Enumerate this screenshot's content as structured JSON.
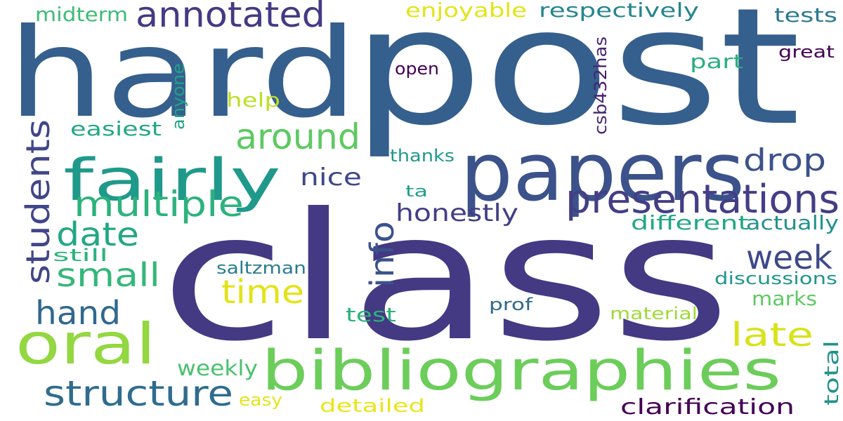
{
  "colors": {
    "background": "#ffffff",
    "palette": [
      "#440154",
      "#443983",
      "#31688e",
      "#21918c",
      "#35b779",
      "#90d743",
      "#fde725"
    ]
  },
  "words": [
    {
      "text": "class",
      "color": "#443983"
    },
    {
      "text": "post",
      "color": "#355f8d"
    },
    {
      "text": "hard",
      "color": "#355f8d"
    },
    {
      "text": "papers",
      "color": "#3b528b"
    },
    {
      "text": "bibliographies",
      "color": "#6ccd5a"
    },
    {
      "text": "fairly",
      "color": "#1f998a"
    },
    {
      "text": "oral",
      "color": "#93d741"
    },
    {
      "text": "presentations",
      "color": "#433e85"
    },
    {
      "text": "annotated",
      "color": "#443a83"
    },
    {
      "text": "multiple",
      "color": "#2db27d"
    },
    {
      "text": "structure",
      "color": "#2f6c8e"
    },
    {
      "text": "around",
      "color": "#5ec962"
    },
    {
      "text": "date",
      "color": "#22a884"
    },
    {
      "text": "info",
      "color": "#3b528b"
    },
    {
      "text": "week",
      "color": "#3e4989"
    },
    {
      "text": "small",
      "color": "#35b779"
    },
    {
      "text": "hand",
      "color": "#31688e"
    },
    {
      "text": "students",
      "color": "#404688"
    },
    {
      "text": "time",
      "color": "#e2e418"
    },
    {
      "text": "late",
      "color": "#d8e219"
    },
    {
      "text": "drop",
      "color": "#3b528b"
    },
    {
      "text": "honestly",
      "color": "#433e85"
    },
    {
      "text": "nice",
      "color": "#3e4989"
    },
    {
      "text": "weekly",
      "color": "#4ac16d"
    },
    {
      "text": "clarification",
      "color": "#440154"
    },
    {
      "text": "different",
      "color": "#22a884"
    },
    {
      "text": "actually",
      "color": "#21918c"
    },
    {
      "text": "respectively",
      "color": "#25858e"
    },
    {
      "text": "enjoyable",
      "color": "#e2e418"
    },
    {
      "text": "midterm",
      "color": "#3dbc74"
    },
    {
      "text": "tests",
      "color": "#2a788e"
    },
    {
      "text": "part",
      "color": "#29af7f"
    },
    {
      "text": "great",
      "color": "#440154"
    },
    {
      "text": "open",
      "color": "#440154"
    },
    {
      "text": "help",
      "color": "#bddf26"
    },
    {
      "text": "easiest",
      "color": "#22a884"
    },
    {
      "text": "anyone",
      "color": "#20a386"
    },
    {
      "text": "csb432has",
      "color": "#482374"
    },
    {
      "text": "thanks",
      "color": "#1f998a"
    },
    {
      "text": "ta",
      "color": "#1f9e89"
    },
    {
      "text": "still",
      "color": "#2db27d"
    },
    {
      "text": "saltzman",
      "color": "#287d8e"
    },
    {
      "text": "discussions",
      "color": "#1f968b"
    },
    {
      "text": "marks",
      "color": "#5ec962"
    },
    {
      "text": "test",
      "color": "#2db27d"
    },
    {
      "text": "prof",
      "color": "#31688e"
    },
    {
      "text": "material",
      "color": "#9fda3a"
    },
    {
      "text": "total",
      "color": "#21918c"
    },
    {
      "text": "easy",
      "color": "#e5e419"
    },
    {
      "text": "detailed",
      "color": "#eae51a"
    }
  ]
}
